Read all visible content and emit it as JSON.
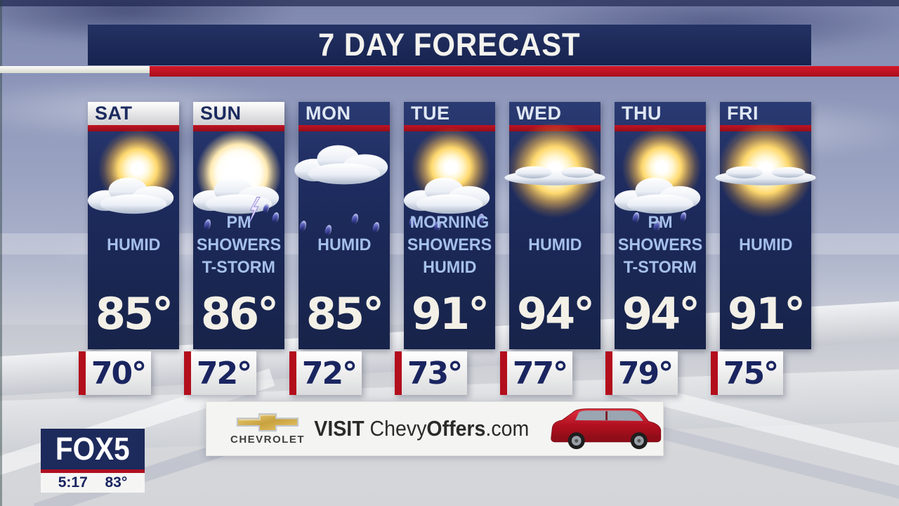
{
  "title": "7 DAY FORECAST",
  "days": [
    {
      "name": "SAT",
      "highlight": true,
      "icon": "partly-cloudy",
      "icon_label": "partly-cloudy-icon",
      "conditions": [
        "HUMID"
      ],
      "high": "85°",
      "low": "70°"
    },
    {
      "name": "SUN",
      "highlight": true,
      "icon": "tstorm",
      "icon_label": "thunderstorm-icon",
      "conditions": [
        "PM",
        "SHOWERS",
        "T-STORM"
      ],
      "high": "86°",
      "low": "72°"
    },
    {
      "name": "MON",
      "highlight": false,
      "icon": "rain",
      "icon_label": "rain-showers-icon",
      "conditions": [
        "HUMID"
      ],
      "high": "85°",
      "low": "72°"
    },
    {
      "name": "TUE",
      "highlight": false,
      "icon": "sun-showers",
      "icon_label": "sun-with-showers-icon",
      "conditions": [
        "MORNING",
        "SHOWERS",
        "HUMID"
      ],
      "high": "91°",
      "low": "73°"
    },
    {
      "name": "WED",
      "highlight": false,
      "icon": "mostly-sunny",
      "icon_label": "mostly-sunny-icon",
      "conditions": [
        "HUMID"
      ],
      "high": "94°",
      "low": "77°"
    },
    {
      "name": "THU",
      "highlight": false,
      "icon": "pm-tstorm",
      "icon_label": "pm-showers-icon",
      "conditions": [
        "PM",
        "SHOWERS",
        "T-STORM"
      ],
      "high": "94°",
      "low": "79°"
    },
    {
      "name": "FRI",
      "highlight": false,
      "icon": "mostly-sunny",
      "icon_label": "mostly-sunny-icon",
      "conditions": [
        "HUMID"
      ],
      "high": "91°",
      "low": "75°"
    }
  ],
  "ad": {
    "logo_text": "CHEVROLET",
    "visit_prefix": "VISIT ",
    "visit_brand": "Chevy",
    "visit_offers": "Offers",
    "visit_suffix": ".com"
  },
  "station": {
    "logo": "FOX5",
    "time": "5:17",
    "temperature": "83°"
  },
  "colors": {
    "banner_navy": "#1a2558",
    "column_navy": "#1d2b5f",
    "accent_red": "#b30e1c",
    "condition_text": "#a6c0ea",
    "high_temp_text": "#f3f0e7",
    "low_temp_text": "#1a2560",
    "chevy_gold": "#d3ab4a",
    "suv_red": "#c01424"
  }
}
